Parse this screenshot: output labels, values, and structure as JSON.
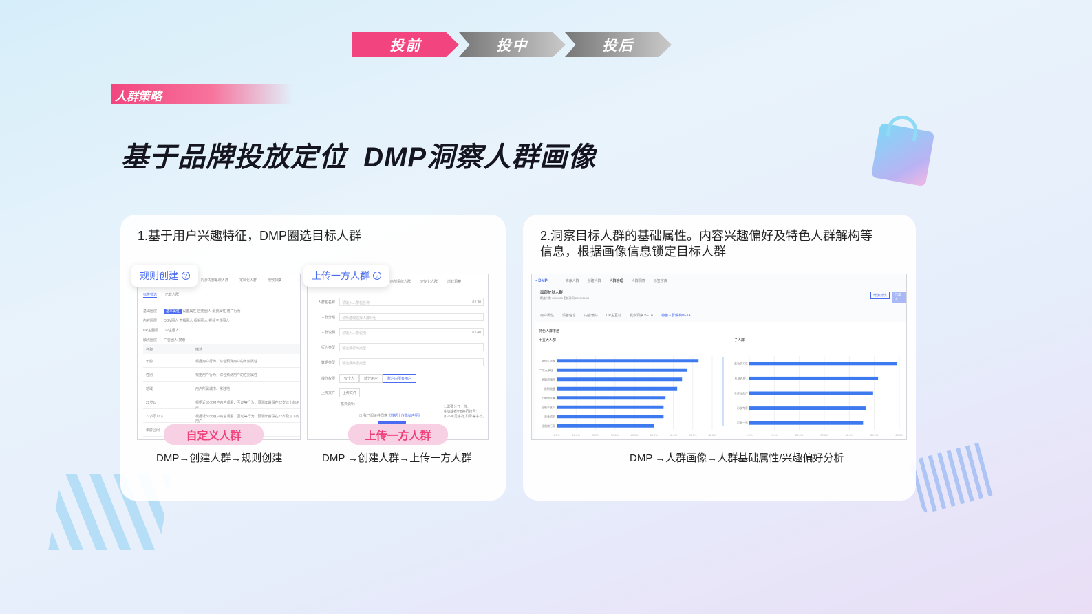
{
  "steps": [
    {
      "label": "投前",
      "color": "#f2457f",
      "active": true
    },
    {
      "label": "投中",
      "color": "#9a9a9a"
    },
    {
      "label": "投后",
      "color": "#9a9a9a"
    }
  ],
  "tag": "人群策略",
  "title": "基于品牌投放定位  DMP洞察人群画像",
  "left_card": {
    "text": "1.基于用户兴趣特征，DMP圈选目标人群",
    "rule": {
      "badge": "规则创建",
      "tabs": [
        "同步内部系统人群",
        "定制化人群",
        "增效洞察"
      ],
      "subtabs": [
        "标签筛选",
        "已有人群"
      ],
      "filters": [
        {
          "label": "基础圈层",
          "items": [
            "基本属性",
            "设备属性",
            "应用圈人",
            "消费属性",
            "用户行为"
          ]
        },
        {
          "label": "内容圈层",
          "items": [
            "OGV圈人",
            "直播圈人",
            "视频圈人",
            "视频主题圈人"
          ]
        },
        {
          "label": "UP主圈层",
          "items": [
            "UP主圈人"
          ]
        },
        {
          "label": "触点圈层",
          "items": [
            "广告圈人",
            "搜索"
          ]
        }
      ],
      "table_headers": [
        "名称",
        "描述"
      ],
      "rows": [
        [
          "年龄",
          "根据用户行为，综合预测用户的年龄属性"
        ],
        [
          "性别",
          "根据用户行为，综合预测用户的性别属性"
        ],
        [
          "地域",
          "用户所属城市、常驻地"
        ],
        [
          "22岁以上",
          "根据近30天用户内容观看、互动等行为，预测年龄段在22岁以上的用户"
        ],
        [
          "22岁及以下",
          "根据近30天用户内容观看、互动等行为，预测年龄段在22岁及以下的用户"
        ],
        [
          "年龄区间",
          ""
        ]
      ],
      "pill": "自定义人群",
      "caption": "DMP→创建人群→规则创建"
    },
    "upload": {
      "badge": "上传一方人群",
      "tabs": [
        "同步内部系统人群",
        "定制化人群",
        "增效洞察"
      ],
      "fields": [
        {
          "label": "人群包名称",
          "placeholder": "请输入人群包名称",
          "counter": "0 / 30"
        },
        {
          "label": "人群分组",
          "placeholder": "请新建或选择人群分组"
        },
        {
          "label": "人群说明",
          "placeholder": "请输入人群说明",
          "counter": "0 / 40"
        },
        {
          "label": "行为类型",
          "placeholder": "请选择行为类型"
        },
        {
          "label": "数据类型",
          "placeholder": "请选择数据类型"
        }
      ],
      "scope_label": "操作权限",
      "scope": [
        "仅个人",
        "部分用户",
        "账户内所有用户"
      ],
      "file_label": "上传文件",
      "file_button": "上传文件",
      "format_label": "格式说明:",
      "agree": "我已阅读并同意",
      "agree_link": "《数据上传隐私声明》",
      "notes": [
        "1.需要分开上传;",
        "中\\n或者\\r\\n换行符号;",
        "如不可见字符,引号等字符。"
      ],
      "pill": "上传一方人群",
      "caption": "DMP →创建人群→上传一方人群"
    }
  },
  "right_card": {
    "text": "2.洞察目标人群的基础属性。内容兴趣偏好及特色人群解构等信息，根据画像信息锁定目标人群",
    "caption": "DMP →人群画像→人群基础属性/兴趣偏好分析",
    "app": {
      "logo": "DMP",
      "nav": [
        "推荐人群",
        "创建人群",
        "人群管理",
        "人群洞察",
        "标签字典"
      ],
      "nav_active": 2,
      "crowd": "面部护肤人群",
      "meta": "覆盖人数 6340785  更新时间 2025-04-19",
      "buttons": [
        "增加对比",
        "已加入"
      ],
      "tabs": [
        "用户属性",
        "设备信息",
        "内容偏好",
        "UP主互动",
        "机会洞察 BETA",
        "特色人群解构BETA"
      ],
      "tab_active": 5,
      "section": "特色人群渗透"
    },
    "chart_data": [
      {
        "type": "bar",
        "orientation": "horizontal",
        "title": "十五大人群",
        "categories": [
          "颜值生活家",
          "二次元原住...",
          "高能游戏帝",
          "数码极客",
          "万物眼民客",
          "全能手艺人",
          "美食猎手",
          "极限旅行家"
        ],
        "values": [
          73,
          67,
          64.5,
          62,
          56,
          55,
          55,
          50
        ],
        "xlim": [
          0,
          80
        ],
        "ticks": [
          "0.0%",
          "10.0%",
          "20.0%",
          "30.0%",
          "40.0%",
          "50.0%",
          "60.0%",
          "70.0%",
          "80.0%"
        ],
        "color": "#3d7af0",
        "grid": true
      },
      {
        "type": "bar",
        "orientation": "horizontal",
        "title": "子人群",
        "categories": [
          "美妆学习生",
          "肌肤养护...",
          "手作派创作",
          "彩妆专家",
          "彩妆一览"
        ],
        "values": [
          59,
          51.5,
          49.5,
          46.5,
          45.5
        ],
        "xlim": [
          0,
          60
        ],
        "ticks": [
          "0.0%",
          "10.0%",
          "20.0%",
          "30.0%",
          "40.0%",
          "50.0%",
          "60.0%"
        ],
        "color": "#3d7af0",
        "grid": true
      }
    ]
  }
}
